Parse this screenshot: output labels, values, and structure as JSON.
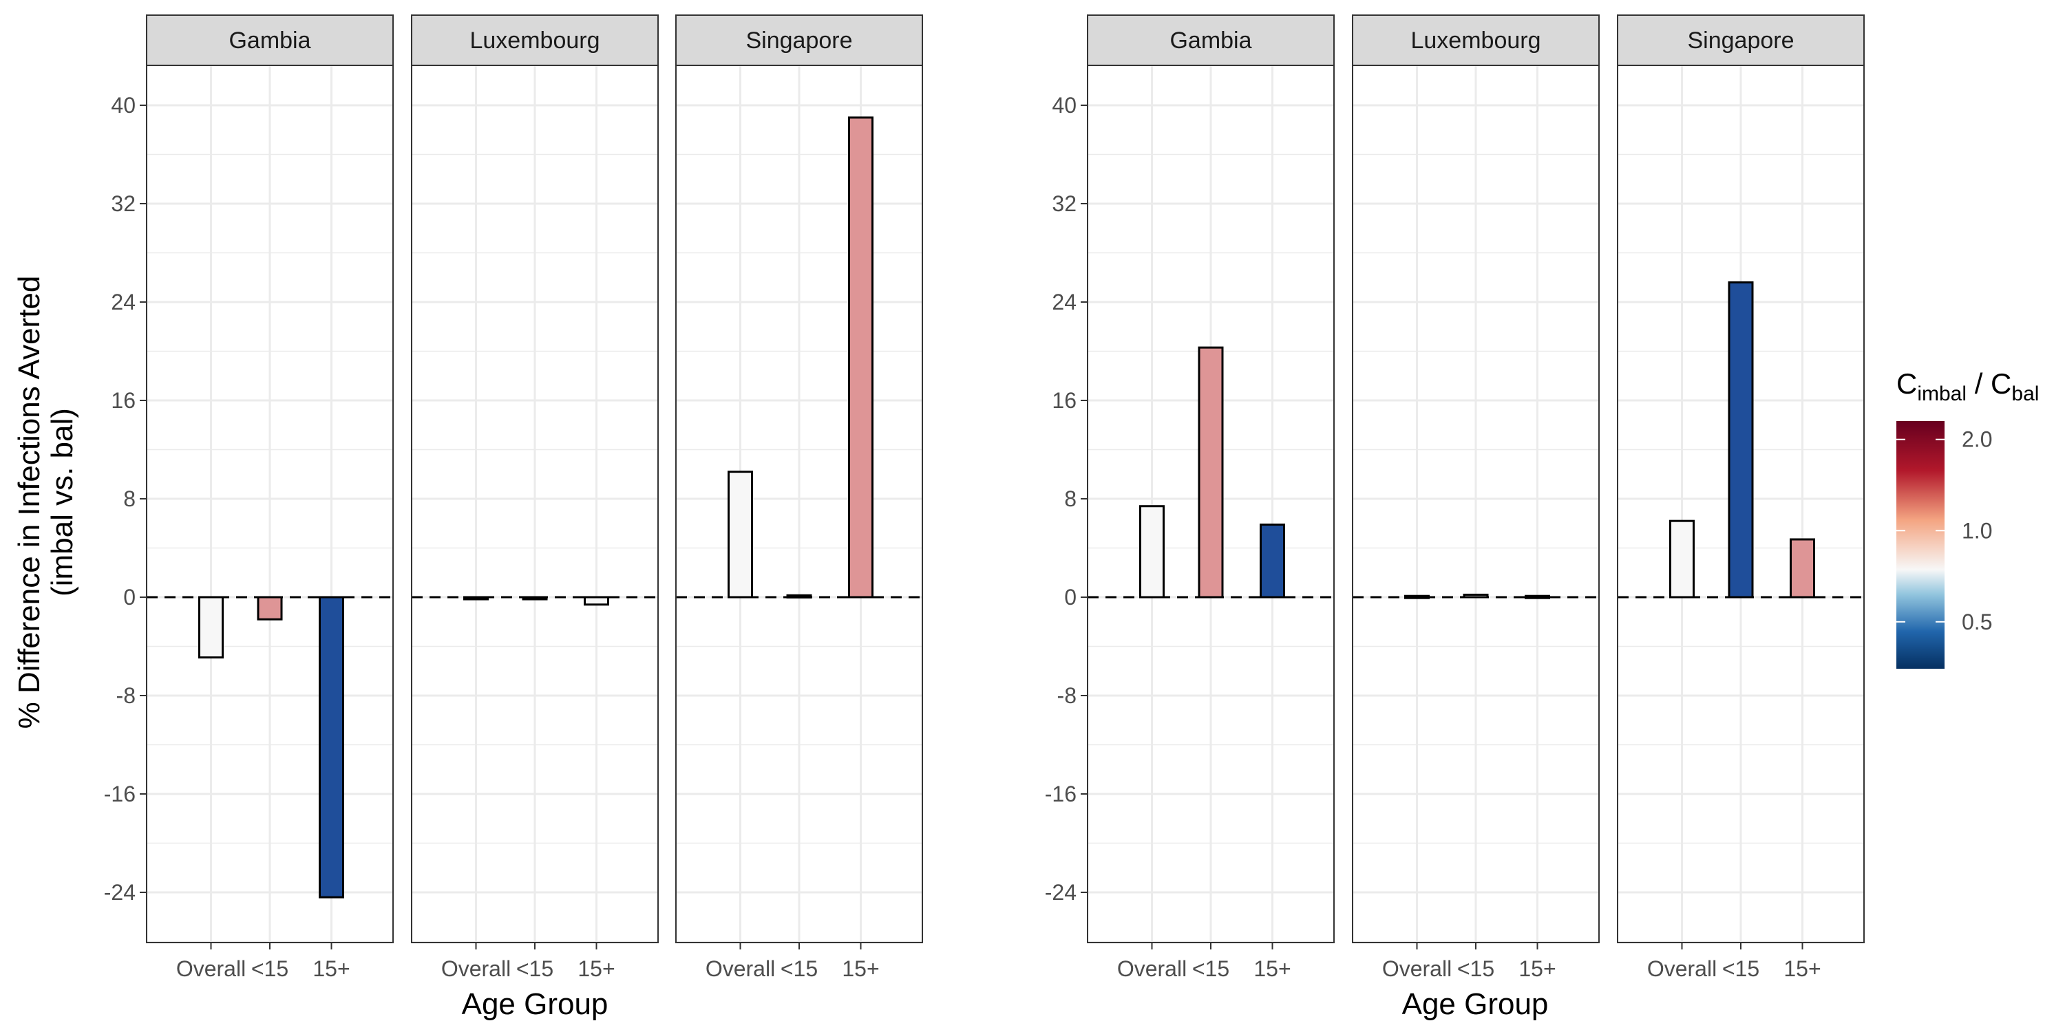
{
  "chart_data": [
    {
      "type": "bar",
      "facets": [
        "Gambia",
        "Luxembourg",
        "Singapore"
      ],
      "categories": [
        "Overall",
        "<15",
        "15+"
      ],
      "xlabel": "Age Group",
      "ylabel_line1": "% Difference in Infections Averted",
      "ylabel_line2": "(imbal vs. bal)",
      "ylim": [
        -28,
        44
      ],
      "yticks": [
        "40",
        "32",
        "24",
        "16",
        "8",
        "0",
        "-8",
        "-16",
        "-24"
      ],
      "ytick_values": [
        40,
        32,
        24,
        16,
        8,
        0,
        -8,
        -16,
        -24
      ],
      "reference_line": 0,
      "grid": true,
      "series": [
        {
          "facet": "Gambia",
          "values": [
            -4.9,
            -1.8,
            -24.4
          ],
          "ratio": [
            1.0,
            1.6,
            0.4
          ]
        },
        {
          "facet": "Luxembourg",
          "values": [
            -0.1,
            -0.05,
            -0.6
          ],
          "ratio": [
            1.0,
            1.0,
            1.0
          ]
        },
        {
          "facet": "Singapore",
          "values": [
            10.2,
            0.15,
            39.0
          ],
          "ratio": [
            1.0,
            1.0,
            1.6
          ]
        }
      ]
    },
    {
      "type": "bar",
      "facets": [
        "Gambia",
        "Luxembourg",
        "Singapore"
      ],
      "categories": [
        "Overall",
        "<15",
        "15+"
      ],
      "xlabel": "Age Group",
      "ylim": [
        -28,
        44
      ],
      "yticks": [
        "40",
        "32",
        "24",
        "16",
        "8",
        "0",
        "-8",
        "-16",
        "-24"
      ],
      "ytick_values": [
        40,
        32,
        24,
        16,
        8,
        0,
        -8,
        -16,
        -24
      ],
      "reference_line": 0,
      "grid": true,
      "series": [
        {
          "facet": "Gambia",
          "values": [
            7.4,
            20.3,
            5.9
          ],
          "ratio": [
            1.0,
            1.6,
            0.4
          ]
        },
        {
          "facet": "Luxembourg",
          "values": [
            0.1,
            0.2,
            0.1
          ],
          "ratio": [
            1.0,
            1.0,
            1.0
          ]
        },
        {
          "facet": "Singapore",
          "values": [
            6.2,
            25.6,
            4.7
          ],
          "ratio": [
            1.0,
            0.4,
            1.6
          ]
        }
      ]
    }
  ],
  "legend": {
    "title_c1": "C",
    "title_sub1": "imbal",
    "title_mid": " / C",
    "title_sub2": "bal",
    "labels": [
      "2.0",
      "1.0",
      "0.5"
    ],
    "label_values": [
      2.0,
      1.0,
      0.5
    ],
    "range": [
      0.35,
      2.3
    ],
    "colors": {
      "low": "#053061",
      "mid_low": "#4393c3",
      "mid": "#f7f7f7",
      "mid_high": "#d6604d",
      "high": "#67001f"
    }
  },
  "colors": {
    "bar_neutral": "#f7f7f7",
    "bar_high": "#de9596",
    "bar_low": "#1f4e9a",
    "strip_bg": "#d9d9d9",
    "grid": "#ebebeb"
  }
}
